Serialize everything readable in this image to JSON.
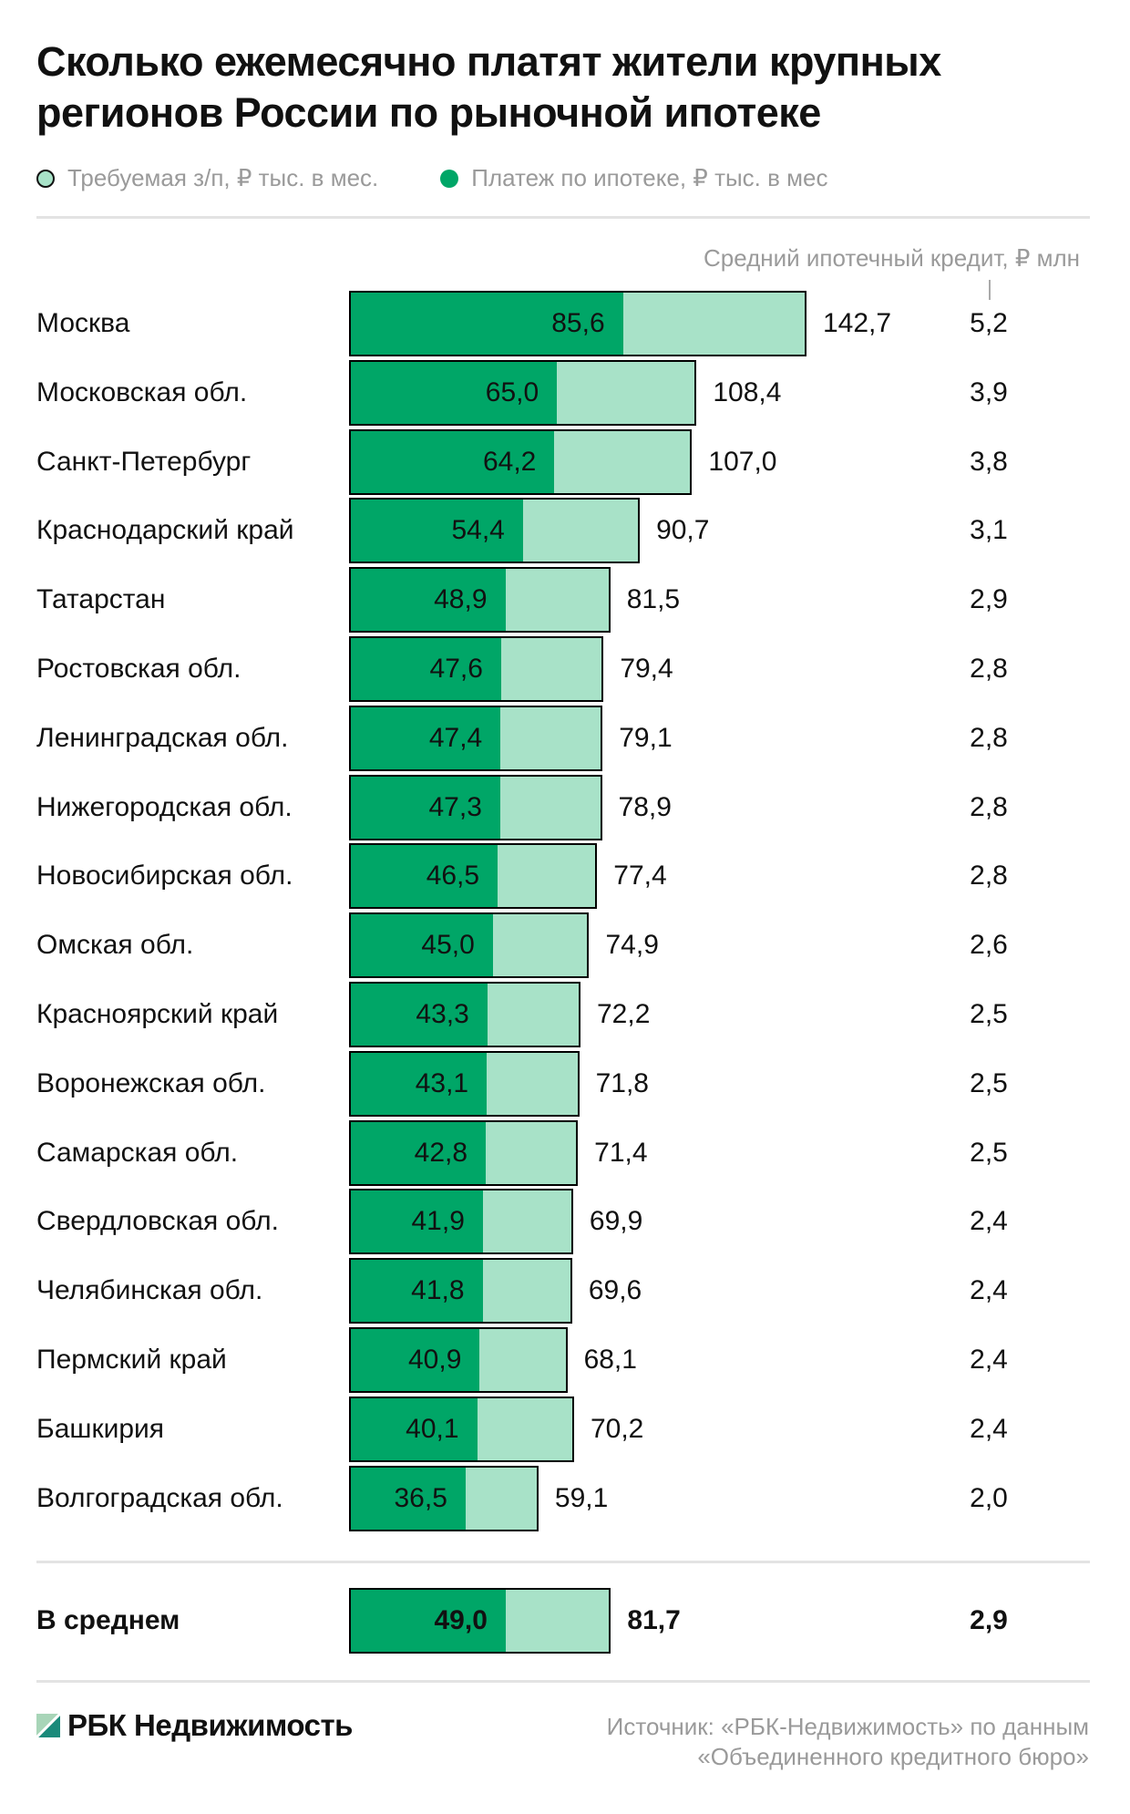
{
  "chart_data": {
    "type": "bar",
    "title": "Сколько ежемесячно платят жители крупных регионов России по рыночной ипотеке",
    "legend": [
      {
        "name": "Требуемая з/п, ₽ тыс. в мес.",
        "color": "#a8e2c8"
      },
      {
        "name": "Платеж по ипотеке, ₽ тыс. в мес",
        "color": "#00a667"
      }
    ],
    "loan_header": "Средний ипотечный кредит, ₽ млн",
    "categories": [
      "Москва",
      "Московская обл.",
      "Санкт-Петербург",
      "Краснодарский край",
      "Татарстан",
      "Ростовская обл.",
      "Ленинградская обл.",
      "Нижегородская обл.",
      "Новосибирская обл.",
      "Омская обл.",
      "Красноярский край",
      "Воронежская обл.",
      "Самарская обл.",
      "Свердловская обл.",
      "Челябинская обл.",
      "Пермский край",
      "Башкирия",
      "Волгоградская обл."
    ],
    "series": [
      {
        "name": "Платеж по ипотеке, ₽ тыс. в мес",
        "values": [
          85.6,
          65.0,
          64.2,
          54.4,
          48.9,
          47.6,
          47.4,
          47.3,
          46.5,
          45.0,
          43.3,
          43.1,
          42.8,
          41.9,
          41.8,
          40.9,
          40.1,
          36.5
        ],
        "labels": [
          "85,6",
          "65,0",
          "64,2",
          "54,4",
          "48,9",
          "47,6",
          "47,4",
          "47,3",
          "46,5",
          "45,0",
          "43,3",
          "43,1",
          "42,8",
          "41,9",
          "41,8",
          "40,9",
          "40,1",
          "36,5"
        ]
      },
      {
        "name": "Требуемая з/п, ₽ тыс. в мес.",
        "values": [
          142.7,
          108.4,
          107.0,
          90.7,
          81.5,
          79.4,
          79.1,
          78.9,
          77.4,
          74.9,
          72.2,
          71.8,
          71.4,
          69.9,
          69.6,
          68.1,
          70.2,
          59.1
        ],
        "labels": [
          "142,7",
          "108,4",
          "107,0",
          "90,7",
          "81,5",
          "79,4",
          "79,1",
          "78,9",
          "77,4",
          "74,9",
          "72,2",
          "71,8",
          "71,4",
          "69,9",
          "69,6",
          "68,1",
          "70,2",
          "59,1"
        ]
      },
      {
        "name": "Средний ипотечный кредит, ₽ млн",
        "values": [
          5.2,
          3.9,
          3.8,
          3.1,
          2.9,
          2.8,
          2.8,
          2.8,
          2.8,
          2.6,
          2.5,
          2.5,
          2.5,
          2.4,
          2.4,
          2.4,
          2.4,
          2.0
        ],
        "labels": [
          "5,2",
          "3,9",
          "3,8",
          "3,1",
          "2,9",
          "2,8",
          "2,8",
          "2,8",
          "2,8",
          "2,6",
          "2,5",
          "2,5",
          "2,5",
          "2,4",
          "2,4",
          "2,4",
          "2,4",
          "2,0"
        ]
      }
    ],
    "average": {
      "label": "В среднем",
      "payment": 49.0,
      "payment_label": "49,0",
      "salary": 81.7,
      "salary_label": "81,7",
      "loan_label": "2,9"
    },
    "xlim": [
      0,
      142.7
    ]
  },
  "footer": {
    "logo": "РБК Недвижимость",
    "source_line1": "Источник: «РБК-Недвижимость» по данным",
    "source_line2": "«Объединенного кредитного бюро»"
  }
}
